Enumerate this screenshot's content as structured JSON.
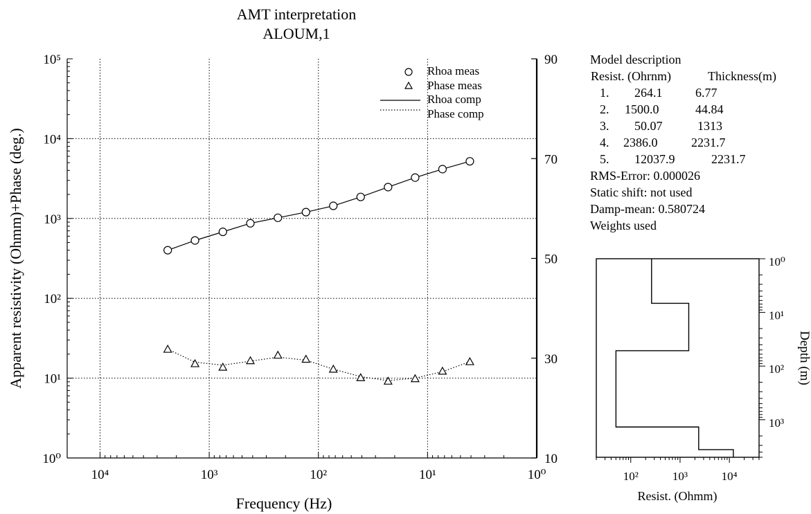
{
  "chart_data": [
    {
      "type": "scatter",
      "title": "AMT interpretation",
      "subtitle": "ALOUM,1",
      "xlabel": "Frequency (Hz)",
      "ylabel": "Apparent resistivity (Ohmm)+Phase (deg.)",
      "x_scale": "log",
      "x_reversed": true,
      "xlim": [
        20000,
        1
      ],
      "x_ticks": [
        "10⁴",
        "10³",
        "10²",
        "10¹",
        "10⁰"
      ],
      "y_scale": "log",
      "ylim": [
        1,
        100000
      ],
      "y_ticks": [
        "10⁰",
        "10¹",
        "10²",
        "10³",
        "10⁴",
        "10⁵"
      ],
      "y2_label": "",
      "y2lim": [
        10,
        90
      ],
      "y2_ticks": [
        "10",
        "30",
        "50",
        "70",
        "90"
      ],
      "grid": true,
      "legend_position": "top-right",
      "series": [
        {
          "name": "Rhoa meas",
          "marker": "circle",
          "axis": "left",
          "x": [
            2400,
            1350,
            750,
            420,
            235,
            130,
            73,
            41,
            23,
            13,
            7.3,
            4.1
          ],
          "y": [
            400,
            530,
            680,
            870,
            1020,
            1200,
            1440,
            1860,
            2470,
            3250,
            4150,
            5200
          ]
        },
        {
          "name": "Phase meas",
          "marker": "triangle",
          "axis": "right",
          "x": [
            2400,
            1350,
            750,
            420,
            235,
            130,
            73,
            41,
            23,
            13,
            7.3,
            4.1
          ],
          "y": [
            31.8,
            28.9,
            28.2,
            29.5,
            30.6,
            29.8,
            27.8,
            26.1,
            25.4,
            25.9,
            27.4,
            29.3
          ]
        },
        {
          "name": "Rhoa comp",
          "line": "solid",
          "axis": "left",
          "x": [
            2400,
            1350,
            750,
            420,
            235,
            130,
            73,
            41,
            23,
            13,
            7.3,
            4.1
          ],
          "y": [
            400,
            530,
            680,
            870,
            1020,
            1200,
            1440,
            1860,
            2470,
            3250,
            4150,
            5200
          ]
        },
        {
          "name": "Phase comp",
          "line": "dotted",
          "axis": "right",
          "x": [
            2400,
            1350,
            750,
            420,
            235,
            130,
            73,
            41,
            23,
            13,
            7.3,
            4.1
          ],
          "y": [
            31.8,
            29.2,
            28.6,
            29.4,
            30.2,
            29.6,
            27.8,
            26.3,
            25.5,
            26.0,
            27.3,
            29.3
          ]
        }
      ]
    },
    {
      "type": "line",
      "title": "",
      "xlabel": "Resist. (Ohmm)",
      "ylabel": "Depth (m)",
      "x_scale": "log",
      "xlim": [
        20,
        40000
      ],
      "x_ticks": [
        "10²",
        "10³",
        "10⁴"
      ],
      "y_scale": "log",
      "ylim": [
        1,
        5000
      ],
      "y_reversed": true,
      "y_ticks": [
        "10⁰",
        "10¹",
        "10²",
        "10³"
      ],
      "series": [
        {
          "name": "",
          "resistivity": [
            264.1,
            1500.0,
            50.07,
            2386.0,
            12037.9
          ],
          "layer_bottom_depth": [
            6.77,
            51.61,
            1364.61,
            3596.31,
            5000
          ]
        }
      ]
    }
  ],
  "panel": {
    "heading": "Model description",
    "col_resist": "Resist. (Ohrnm)",
    "col_thickness": "Thickness(m)",
    "layers": [
      {
        "num": "1.",
        "resist": "264.1",
        "thick": "6.77"
      },
      {
        "num": "2.",
        "resist": "1500.0",
        "thick": "44.84"
      },
      {
        "num": "3.",
        "resist": "50.07",
        "thick": "1313"
      },
      {
        "num": "4.",
        "resist": "2386.0",
        "thick": "2231.7"
      },
      {
        "num": "5.",
        "resist": "12037.9",
        "thick": "2231.7"
      }
    ],
    "rms": "RMS-Error: 0.000026",
    "static_shift": "Static shift: not used",
    "damp_mean": "Damp-mean: 0.580724",
    "weights": "Weights used"
  }
}
